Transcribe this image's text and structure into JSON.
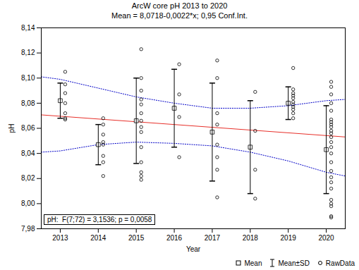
{
  "chart_data": {
    "type": "scatter",
    "title": "ArcW core pH 2013 to 2020",
    "subtitle": "Mean = 8,0718-0,0022*x; 0,95 Conf.Int.",
    "x_label": "Year",
    "y_label": "pH",
    "xlim": [
      2012.5,
      2020.5
    ],
    "xticks": [
      2013,
      2014,
      2015,
      2016,
      2017,
      2018,
      2019,
      2020
    ],
    "ylim": [
      7.98,
      8.14
    ],
    "yticks": [
      {
        "value": 7.98,
        "label": "7,98"
      },
      {
        "value": 8.0,
        "label": "8,00"
      },
      {
        "value": 8.02,
        "label": "8,02"
      },
      {
        "value": 8.04,
        "label": "8,04"
      },
      {
        "value": 8.06,
        "label": "8,06"
      },
      {
        "value": 8.08,
        "label": "8,08"
      },
      {
        "value": 8.1,
        "label": "8,10"
      },
      {
        "value": 8.12,
        "label": "8,12"
      },
      {
        "value": 8.14,
        "label": "8,14"
      }
    ],
    "legend": "bottom-right",
    "annotation": "pH:  F(7;72) = 3,1536; p = 0,0058",
    "series": [
      {
        "name": "Mean",
        "type": "scatter",
        "marker": "square",
        "color": "#000000",
        "x": [
          2013,
          2014,
          2015,
          2016,
          2017,
          2018,
          2019,
          2020
        ],
        "values": [
          8.082,
          8.047,
          8.066,
          8.076,
          8.057,
          8.045,
          8.08,
          8.043
        ]
      },
      {
        "name": "Mean±SD",
        "type": "errorbar",
        "color": "#000000",
        "x": [
          2013,
          2014,
          2015,
          2016,
          2017,
          2018,
          2019,
          2020
        ],
        "values": [
          8.082,
          8.047,
          8.066,
          8.076,
          8.057,
          8.045,
          8.08,
          8.043
        ],
        "error": [
          0.014,
          0.016,
          0.034,
          0.031,
          0.039,
          0.037,
          0.013,
          0.035
        ]
      },
      {
        "name": "RawData",
        "type": "scatter",
        "marker": "circle",
        "color": "#000000",
        "x": [
          2013,
          2014,
          2015,
          2016,
          2017,
          2018,
          2019,
          2020
        ],
        "values": [
          [
            8.105,
            8.095,
            8.088,
            8.08,
            8.072,
            8.068,
            8.067
          ],
          [
            8.068,
            8.063,
            8.055,
            8.049,
            8.047,
            8.038,
            8.033,
            8.022
          ],
          [
            8.123,
            8.1,
            8.09,
            8.083,
            8.079,
            8.072,
            8.066,
            8.061,
            8.057,
            8.045,
            8.033,
            8.025,
            8.022,
            8.019
          ],
          [
            8.111,
            8.087,
            8.069,
            8.037
          ],
          [
            8.114,
            8.1,
            8.072,
            8.063,
            8.047,
            8.037,
            8.027,
            8.005
          ],
          [
            8.089,
            8.058,
            8.027,
            8.004
          ],
          [
            8.108,
            8.091,
            8.088,
            8.086,
            8.084,
            8.081,
            8.079,
            8.077,
            8.075,
            8.072,
            8.068
          ],
          [
            8.097,
            8.093,
            8.087,
            8.08,
            8.074,
            8.067,
            8.065,
            8.063,
            8.061,
            8.058,
            8.056,
            8.053,
            8.049,
            8.045,
            8.04,
            8.033,
            8.026,
            8.021,
            8.017,
            8.012,
            8.003,
            8.0,
            7.998,
            7.99,
            7.989
          ]
        ]
      }
    ],
    "fit": {
      "color": "#e8302a",
      "x": [
        2012.5,
        2020.5
      ],
      "values": [
        8.0707,
        8.0531
      ]
    },
    "confidence_band": {
      "color": "#0000c8",
      "line_style": "dotted",
      "x": [
        2012.5,
        2013,
        2014,
        2015,
        2016,
        2017,
        2018,
        2019,
        2020,
        2020.5
      ],
      "upper": [
        8.101,
        8.099,
        8.092,
        8.085,
        8.08,
        8.076,
        8.076,
        8.078,
        8.082,
        8.083
      ],
      "lower": [
        8.041,
        8.042,
        8.047,
        8.049,
        8.048,
        8.046,
        8.041,
        8.034,
        8.025,
        8.022
      ]
    }
  }
}
